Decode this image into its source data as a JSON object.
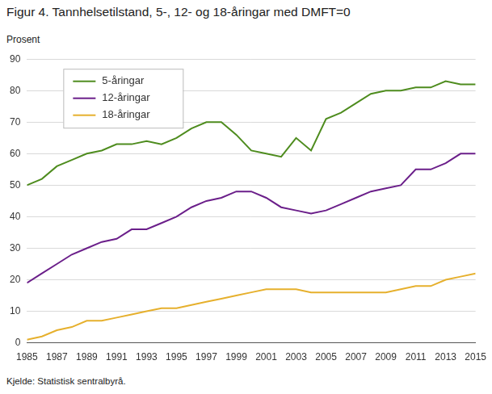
{
  "chart_data": {
    "type": "line",
    "title": "Figur 4. Tannhelsetilstand, 5-, 12- og 18-åringar med DMFT=0",
    "ylabel": "Prosent",
    "source": "Kjelde: Statistisk sentralbyrå.",
    "x": [
      1985,
      1986,
      1987,
      1988,
      1989,
      1990,
      1991,
      1992,
      1993,
      1994,
      1995,
      1996,
      1997,
      1998,
      1999,
      2000,
      2001,
      2002,
      2003,
      2004,
      2005,
      2006,
      2007,
      2008,
      2009,
      2010,
      2011,
      2012,
      2013,
      2014,
      2015
    ],
    "series": [
      {
        "name": "5-åringar",
        "color": "#4e8c1e",
        "values": [
          50,
          52,
          56,
          58,
          60,
          61,
          63,
          63,
          64,
          63,
          65,
          68,
          70,
          70,
          66,
          61,
          60,
          59,
          65,
          61,
          71,
          73,
          76,
          79,
          80,
          80,
          81,
          81,
          83,
          82,
          82
        ]
      },
      {
        "name": "12-åringar",
        "color": "#6b1f8a",
        "values": [
          19,
          22,
          25,
          28,
          30,
          32,
          33,
          36,
          36,
          38,
          40,
          43,
          45,
          46,
          48,
          48,
          46,
          43,
          42,
          41,
          42,
          44,
          46,
          48,
          49,
          50,
          55,
          55,
          57,
          60,
          60
        ]
      },
      {
        "name": "18-åringar",
        "color": "#e6b02d",
        "values": [
          1,
          2,
          4,
          5,
          7,
          7,
          8,
          9,
          10,
          11,
          11,
          12,
          13,
          14,
          15,
          16,
          17,
          17,
          17,
          16,
          16,
          16,
          16,
          16,
          16,
          17,
          18,
          18,
          20,
          21,
          22
        ]
      }
    ],
    "xlim": [
      1985,
      2015
    ],
    "xticks": [
      1985,
      1987,
      1989,
      1991,
      1993,
      1995,
      1997,
      1999,
      2001,
      2003,
      2005,
      2007,
      2009,
      2011,
      2013,
      2015
    ],
    "ylim": [
      0,
      90
    ],
    "yticks": [
      0,
      10,
      20,
      30,
      40,
      50,
      60,
      70,
      80,
      90
    ],
    "grid": true,
    "legend": "upper left"
  }
}
